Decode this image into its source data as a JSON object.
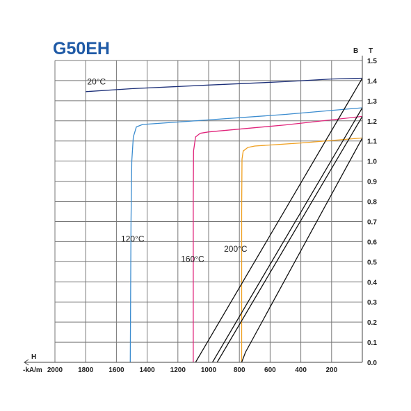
{
  "chart_data": {
    "type": "line",
    "title": "G50EH",
    "x_axis": {
      "symbol": "H",
      "unit": "-kA/m",
      "range": [
        2000,
        0
      ],
      "reversed": true,
      "tick_values": [
        2000,
        1800,
        1600,
        1400,
        1200,
        1000,
        800,
        600,
        400,
        200
      ],
      "tick_labels": [
        "2000",
        "1800",
        "1600",
        "1400",
        "1200",
        "1000",
        "800",
        "600",
        "400",
        "200"
      ]
    },
    "y_axis": {
      "symbol": "B",
      "unit": "T",
      "range": [
        0,
        1.5
      ],
      "position": "right",
      "tick_values": [
        0,
        0.1,
        0.2,
        0.3,
        0.4,
        0.5,
        0.6,
        0.7,
        0.8,
        0.9,
        1.0,
        1.1,
        1.2,
        1.3,
        1.4,
        1.5
      ],
      "tick_labels": [
        "0.0",
        "0.1",
        "0.2",
        "0.3",
        "0.4",
        "0.5",
        "0.6",
        "0.7",
        "0.8",
        "0.9",
        "1.0",
        "1.1",
        "1.2",
        "1.3",
        "1.4",
        "1.5"
      ]
    },
    "grid": true,
    "series": [
      {
        "name": "20°C",
        "color": "#1c2f78",
        "kind": "demag",
        "points": [
          [
            1800,
            1.345
          ],
          [
            1500,
            1.36
          ],
          [
            1000,
            1.378
          ],
          [
            500,
            1.395
          ],
          [
            200,
            1.408
          ],
          [
            0,
            1.412
          ]
        ]
      },
      {
        "name": "120°C",
        "color": "#3b8ccf",
        "kind": "demag",
        "points": [
          [
            1510,
            0
          ],
          [
            1505,
            0.7
          ],
          [
            1500,
            1.0
          ],
          [
            1490,
            1.12
          ],
          [
            1470,
            1.17
          ],
          [
            1430,
            1.182
          ],
          [
            1000,
            1.205
          ],
          [
            500,
            1.232
          ],
          [
            0,
            1.265
          ]
        ]
      },
      {
        "name": "160°C",
        "color": "#e0237a",
        "kind": "demag",
        "points": [
          [
            1100,
            0
          ],
          [
            1100,
            0.8
          ],
          [
            1098,
            1.05
          ],
          [
            1085,
            1.12
          ],
          [
            1055,
            1.138
          ],
          [
            1000,
            1.145
          ],
          [
            500,
            1.18
          ],
          [
            0,
            1.222
          ]
        ]
      },
      {
        "name": "200°C",
        "color": "#f0a020",
        "kind": "demag",
        "points": [
          [
            785,
            0
          ],
          [
            785,
            0.75
          ],
          [
            783,
            1.01
          ],
          [
            775,
            1.05
          ],
          [
            745,
            1.068
          ],
          [
            700,
            1.075
          ],
          [
            400,
            1.09
          ],
          [
            0,
            1.115
          ]
        ]
      },
      {
        "name": "",
        "color": "#111111",
        "kind": "load-line",
        "points": [
          [
            1085,
            0
          ],
          [
            0,
            1.412
          ]
        ]
      },
      {
        "name": "",
        "color": "#111111",
        "kind": "load-line",
        "points": [
          [
            975,
            0
          ],
          [
            0,
            1.265
          ]
        ]
      },
      {
        "name": "",
        "color": "#111111",
        "kind": "load-line",
        "points": [
          [
            945,
            0
          ],
          [
            0,
            1.222
          ]
        ]
      },
      {
        "name": "",
        "color": "#111111",
        "kind": "load-line",
        "points": [
          [
            785,
            0
          ],
          [
            760,
            0.05
          ],
          [
            0,
            1.115
          ]
        ]
      }
    ],
    "annotations": [
      {
        "text": "20°C",
        "x": 1790,
        "y": 1.38
      },
      {
        "text": "120°C",
        "x": 1570,
        "y": 0.6
      },
      {
        "text": "160°C",
        "x": 1180,
        "y": 0.5
      },
      {
        "text": "200°C",
        "x": 900,
        "y": 0.55
      }
    ]
  }
}
